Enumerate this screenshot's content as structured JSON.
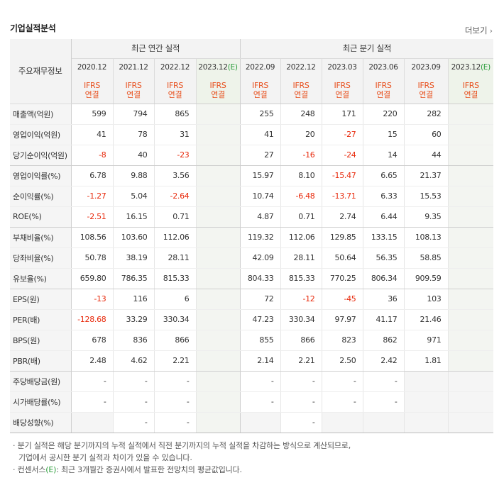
{
  "title": "기업실적분석",
  "more_label": "더보기",
  "corner_label": "주요재무정보",
  "groups": {
    "annual": "최근 연간 실적",
    "quarterly": "최근 분기 실적"
  },
  "periods": [
    {
      "label": "2020.12",
      "est": false
    },
    {
      "label": "2021.12",
      "est": false
    },
    {
      "label": "2022.12",
      "est": false
    },
    {
      "label": "2023.12",
      "est": true
    },
    {
      "label": "2022.09",
      "est": false
    },
    {
      "label": "2022.12",
      "est": false
    },
    {
      "label": "2023.03",
      "est": false
    },
    {
      "label": "2023.06",
      "est": false
    },
    {
      "label": "2023.09",
      "est": false
    },
    {
      "label": "2023.12",
      "est": true
    }
  ],
  "est_mark": "(E)",
  "ifrs_line1": "IFRS",
  "ifrs_line2": "연결",
  "rows": [
    {
      "label": "매출액(억원)",
      "grp": false,
      "values": [
        "599",
        "794",
        "865",
        "",
        "255",
        "248",
        "171",
        "220",
        "282",
        ""
      ]
    },
    {
      "label": "영업이익(억원)",
      "grp": false,
      "values": [
        "41",
        "78",
        "31",
        "",
        "41",
        "20",
        "-27",
        "15",
        "60",
        ""
      ]
    },
    {
      "label": "당기순이익(억원)",
      "grp": true,
      "values": [
        "-8",
        "40",
        "-23",
        "",
        "27",
        "-16",
        "-24",
        "14",
        "44",
        ""
      ]
    },
    {
      "label": "영업이익률(%)",
      "grp": false,
      "values": [
        "6.78",
        "9.88",
        "3.56",
        "",
        "15.97",
        "8.10",
        "-15.47",
        "6.65",
        "21.37",
        ""
      ]
    },
    {
      "label": "순이익률(%)",
      "grp": false,
      "values": [
        "-1.27",
        "5.04",
        "-2.64",
        "",
        "10.74",
        "-6.48",
        "-13.71",
        "6.33",
        "15.53",
        ""
      ]
    },
    {
      "label": "ROE(%)",
      "grp": true,
      "values": [
        "-2.51",
        "16.15",
        "0.71",
        "",
        "4.87",
        "0.71",
        "2.74",
        "6.44",
        "9.35",
        ""
      ]
    },
    {
      "label": "부채비율(%)",
      "grp": false,
      "values": [
        "108.56",
        "103.60",
        "112.06",
        "",
        "119.32",
        "112.06",
        "129.85",
        "133.15",
        "108.13",
        ""
      ]
    },
    {
      "label": "당좌비율(%)",
      "grp": false,
      "values": [
        "50.78",
        "38.19",
        "28.11",
        "",
        "42.09",
        "28.11",
        "50.64",
        "56.35",
        "58.85",
        ""
      ]
    },
    {
      "label": "유보율(%)",
      "grp": true,
      "values": [
        "659.80",
        "786.35",
        "815.33",
        "",
        "804.33",
        "815.33",
        "770.25",
        "806.34",
        "909.59",
        ""
      ]
    },
    {
      "label": "EPS(원)",
      "grp": false,
      "values": [
        "-13",
        "116",
        "6",
        "",
        "72",
        "-12",
        "-45",
        "36",
        "103",
        ""
      ]
    },
    {
      "label": "PER(배)",
      "grp": false,
      "values": [
        "-128.68",
        "33.29",
        "330.34",
        "",
        "47.23",
        "330.34",
        "97.97",
        "41.17",
        "21.46",
        ""
      ]
    },
    {
      "label": "BPS(원)",
      "grp": false,
      "values": [
        "678",
        "836",
        "866",
        "",
        "855",
        "866",
        "823",
        "862",
        "971",
        ""
      ]
    },
    {
      "label": "PBR(배)",
      "grp": true,
      "values": [
        "2.48",
        "4.62",
        "2.21",
        "",
        "2.14",
        "2.21",
        "2.50",
        "2.42",
        "1.81",
        ""
      ]
    },
    {
      "label": "주당배당금(원)",
      "grp": false,
      "values": [
        "-",
        "-",
        "-",
        "",
        "-",
        "-",
        "-",
        "-",
        "",
        ""
      ],
      "na": [
        false,
        false,
        false,
        false,
        false,
        false,
        false,
        false,
        true,
        true
      ]
    },
    {
      "label": "시가배당률(%)",
      "grp": false,
      "values": [
        "-",
        "-",
        "-",
        "",
        "-",
        "-",
        "-",
        "-",
        "",
        ""
      ],
      "na": [
        false,
        false,
        false,
        false,
        false,
        false,
        false,
        false,
        true,
        true
      ]
    },
    {
      "label": "배당성향(%)",
      "grp": false,
      "values": [
        "",
        "-",
        "-",
        "",
        "",
        "-",
        "",
        "",
        "",
        ""
      ],
      "na": [
        true,
        false,
        false,
        false,
        true,
        false,
        true,
        true,
        true,
        true
      ]
    }
  ],
  "notes": {
    "line1": "· 분기 실적은 해당 분기까지의 누적 실적에서 직전 분기까지의 누적 실적을 차감하는 방식으로 계산되므로,",
    "line2": "기업에서 공시한 분기 실적과 차이가 있을 수 있습니다.",
    "line3_prefix": "· 컨센서스",
    "line3_mark": "(E)",
    "line3_suffix": ": 최근 3개월간 증권사에서 발표한 전망치의 평균값입니다."
  }
}
